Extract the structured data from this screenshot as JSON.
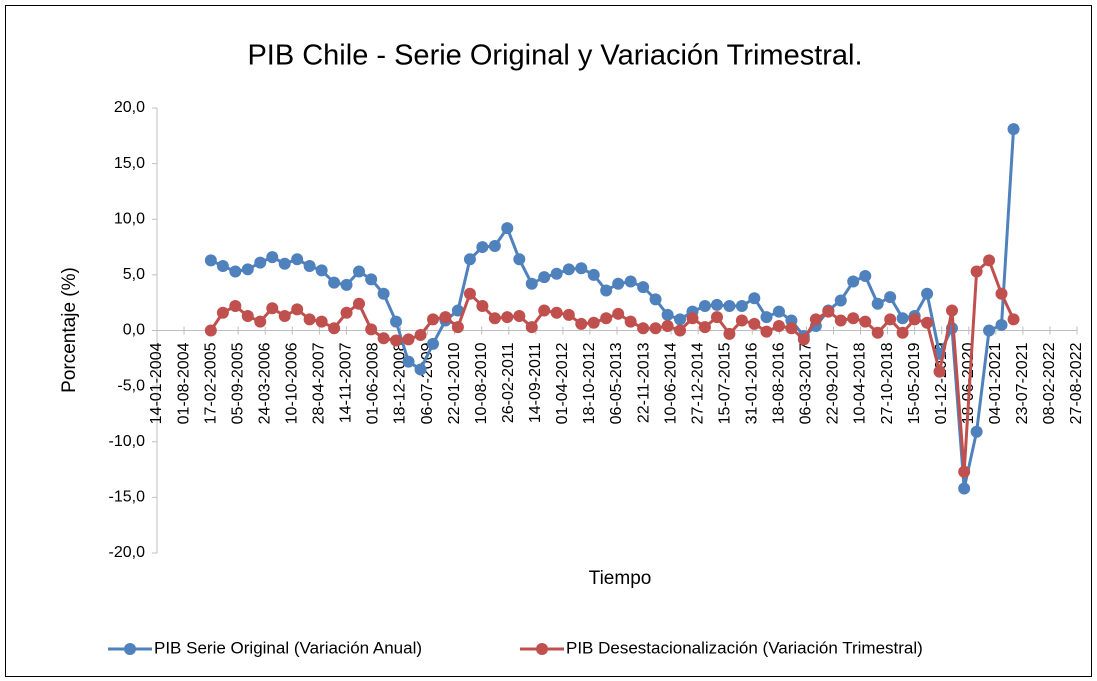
{
  "chart_data": {
    "type": "line",
    "title": "PIB Chile - Serie Original y Variación Trimestral.",
    "xlabel": "Tiempo",
    "ylabel": "Porcentaje (%)",
    "ylim": [
      -20,
      20
    ],
    "yticks": [
      {
        "value": -20,
        "label": "-20,0"
      },
      {
        "value": -15,
        "label": "-15,0"
      },
      {
        "value": -10,
        "label": "-10,0"
      },
      {
        "value": -5,
        "label": "-5,0"
      },
      {
        "value": 0,
        "label": "0,0"
      },
      {
        "value": 5,
        "label": "5,0"
      },
      {
        "value": 10,
        "label": "10,0"
      },
      {
        "value": 15,
        "label": "15,0"
      },
      {
        "value": 20,
        "label": "20,0"
      }
    ],
    "xlim": [
      "14-01-2004",
      "27-08-2022"
    ],
    "xticks": [
      "14-01-2004",
      "01-08-2004",
      "17-02-2005",
      "05-09-2005",
      "24-03-2006",
      "10-10-2006",
      "28-04-2007",
      "14-11-2007",
      "01-06-2008",
      "18-12-2008",
      "06-07-2009",
      "22-01-2010",
      "10-08-2010",
      "26-02-2011",
      "14-09-2011",
      "01-04-2012",
      "18-10-2012",
      "06-05-2013",
      "22-11-2013",
      "10-06-2014",
      "27-12-2014",
      "15-07-2015",
      "31-01-2016",
      "18-08-2016",
      "06-03-2017",
      "22-09-2017",
      "10-04-2018",
      "27-10-2018",
      "15-05-2019",
      "01-12-2019",
      "18-06-2020",
      "04-01-2021",
      "23-07-2021",
      "08-02-2022",
      "27-08-2022"
    ],
    "x": [
      "15-02-2005",
      "15-05-2005",
      "15-08-2005",
      "15-11-2005",
      "15-02-2006",
      "15-05-2006",
      "15-08-2006",
      "15-11-2006",
      "15-02-2007",
      "15-05-2007",
      "15-08-2007",
      "15-11-2007",
      "15-02-2008",
      "15-05-2008",
      "15-08-2008",
      "15-11-2008",
      "15-02-2009",
      "15-05-2009",
      "15-08-2009",
      "15-11-2009",
      "15-02-2010",
      "15-05-2010",
      "15-08-2010",
      "15-11-2010",
      "15-02-2011",
      "15-05-2011",
      "15-08-2011",
      "15-11-2011",
      "15-02-2012",
      "15-05-2012",
      "15-08-2012",
      "15-11-2012",
      "15-02-2013",
      "15-05-2013",
      "15-08-2013",
      "15-11-2013",
      "15-02-2014",
      "15-05-2014",
      "15-08-2014",
      "15-11-2014",
      "15-02-2015",
      "15-05-2015",
      "15-08-2015",
      "15-11-2015",
      "15-02-2016",
      "15-05-2016",
      "15-08-2016",
      "15-11-2016",
      "15-02-2017",
      "15-05-2017",
      "15-08-2017",
      "15-11-2017",
      "15-02-2018",
      "15-05-2018",
      "15-08-2018",
      "15-11-2018",
      "15-02-2019",
      "15-05-2019",
      "15-08-2019",
      "15-11-2019",
      "15-02-2020",
      "15-05-2020",
      "15-08-2020",
      "15-11-2020",
      "15-02-2021",
      "15-05-2021"
    ],
    "series": [
      {
        "name": "PIB Serie Original (Variación Anual)",
        "color": "#4f81bd",
        "values": [
          6.3,
          5.8,
          5.3,
          5.5,
          6.1,
          6.6,
          6.0,
          6.4,
          5.8,
          5.4,
          4.3,
          4.1,
          5.3,
          4.6,
          3.3,
          0.8,
          -2.8,
          -3.5,
          -1.2,
          0.9,
          1.8,
          6.4,
          7.5,
          7.6,
          9.2,
          6.4,
          4.2,
          4.8,
          5.1,
          5.5,
          5.6,
          5.0,
          3.6,
          4.2,
          4.4,
          3.9,
          2.8,
          1.4,
          1.0,
          1.7,
          2.2,
          2.3,
          2.2,
          2.2,
          2.9,
          1.2,
          1.7,
          0.9,
          -0.5,
          0.4,
          1.8,
          2.7,
          4.4,
          4.9,
          2.4,
          3.0,
          1.1,
          1.3,
          3.3,
          -2.1,
          0.2,
          -14.2,
          -9.1,
          0.0,
          0.5,
          18.1
        ]
      },
      {
        "name": "PIB Desestacionalización (Variación Trimestral)",
        "color": "#c0504d",
        "values": [
          0.0,
          1.6,
          2.2,
          1.3,
          0.8,
          2.0,
          1.3,
          1.9,
          1.0,
          0.8,
          0.2,
          1.6,
          2.4,
          0.1,
          -0.7,
          -0.9,
          -0.8,
          -0.4,
          1.0,
          1.2,
          0.3,
          3.3,
          2.2,
          1.1,
          1.2,
          1.3,
          0.3,
          1.8,
          1.6,
          1.4,
          0.6,
          0.7,
          1.1,
          1.5,
          0.8,
          0.2,
          0.2,
          0.4,
          0.0,
          1.1,
          0.3,
          1.2,
          -0.3,
          0.9,
          0.6,
          -0.1,
          0.4,
          0.2,
          -0.8,
          1.0,
          1.7,
          0.9,
          1.1,
          0.8,
          -0.2,
          1.0,
          -0.2,
          1.0,
          0.7,
          -3.7,
          1.8,
          -12.7,
          5.3,
          6.3,
          3.3,
          1.0
        ]
      }
    ]
  }
}
